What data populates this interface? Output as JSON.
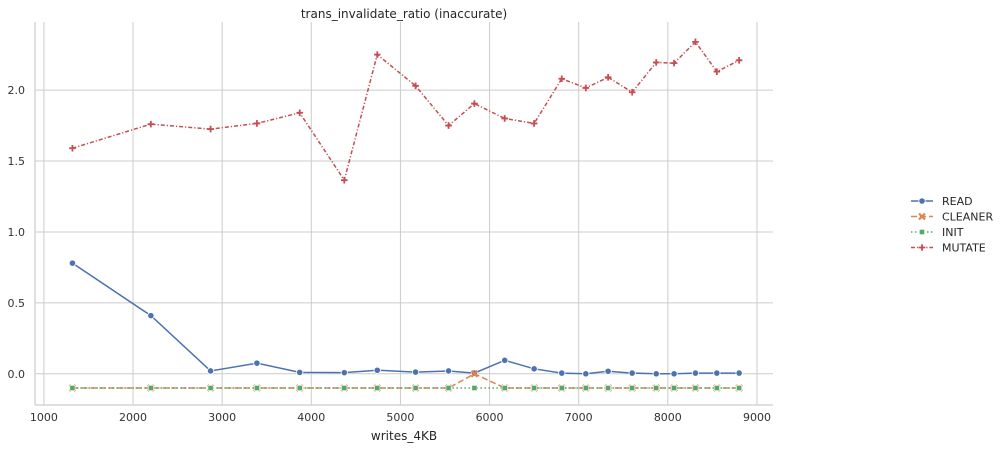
{
  "chart_data": {
    "type": "line",
    "title": "trans_invalidate_ratio (inaccurate)",
    "xlabel": "writes_4KB",
    "ylabel": "",
    "xlim": [
      900,
      9180
    ],
    "ylim": [
      -0.22,
      2.48
    ],
    "xticks": [
      1000,
      2000,
      3000,
      4000,
      5000,
      6000,
      7000,
      8000,
      9000
    ],
    "yticks": [
      0.0,
      0.5,
      1.0,
      1.5,
      2.0
    ],
    "xtick_labels": [
      "1000",
      "2000",
      "3000",
      "4000",
      "5000",
      "6000",
      "7000",
      "8000",
      "9000"
    ],
    "ytick_labels": [
      "0.0",
      "0.5",
      "1.0",
      "1.5",
      "2.0"
    ],
    "grid": true,
    "legend_position": "right",
    "x": [
      1320,
      2200,
      2870,
      3390,
      3870,
      4370,
      4740,
      5170,
      5540,
      5830,
      6170,
      6500,
      6810,
      7080,
      7330,
      7600,
      7870,
      8070,
      8310,
      8550,
      8800
    ],
    "series": [
      {
        "name": "READ",
        "color": "#4c72b0",
        "marker": "circle",
        "dash": "solid",
        "values": [
          0.78,
          0.41,
          0.02,
          0.075,
          0.01,
          0.008,
          0.025,
          0.012,
          0.02,
          0.005,
          0.095,
          0.035,
          0.005,
          0.0,
          0.018,
          0.005,
          0.0,
          0.0,
          0.005,
          0.005,
          0.005
        ]
      },
      {
        "name": "CLEANER",
        "color": "#dd8452",
        "marker": "x",
        "dash": "dashed",
        "values": [
          -0.1,
          -0.1,
          -0.1,
          -0.1,
          -0.1,
          -0.1,
          -0.1,
          -0.1,
          -0.1,
          0.0,
          -0.1,
          -0.1,
          -0.1,
          -0.1,
          -0.1,
          -0.1,
          -0.1,
          -0.1,
          -0.1,
          -0.1,
          -0.1
        ]
      },
      {
        "name": "INIT",
        "color": "#55a868",
        "marker": "square",
        "dash": "dotted",
        "values": [
          -0.1,
          -0.1,
          -0.1,
          -0.1,
          -0.1,
          -0.1,
          -0.1,
          -0.1,
          -0.1,
          -0.1,
          -0.1,
          -0.1,
          -0.1,
          -0.1,
          -0.1,
          -0.1,
          -0.1,
          -0.1,
          -0.1,
          -0.1,
          -0.1
        ]
      },
      {
        "name": "MUTATE",
        "color": "#c44e52",
        "marker": "plus",
        "dash": "dashdot",
        "values": [
          1.59,
          1.76,
          1.725,
          1.765,
          1.84,
          1.365,
          2.25,
          2.03,
          1.75,
          1.905,
          1.8,
          1.765,
          2.08,
          2.015,
          2.09,
          1.985,
          2.195,
          2.19,
          2.34,
          2.13,
          2.21
        ]
      }
    ]
  }
}
